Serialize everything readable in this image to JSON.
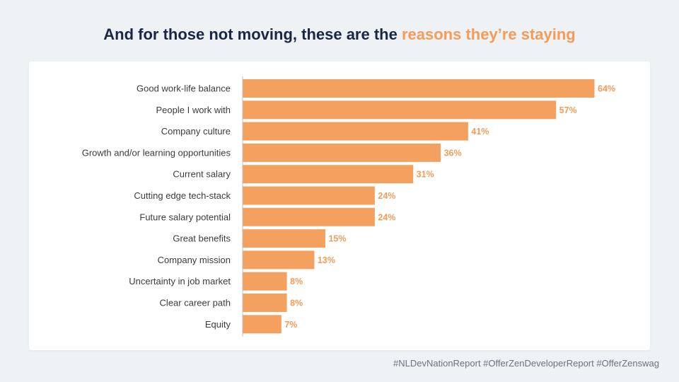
{
  "title": {
    "prefix": "And for those not moving, these are the ",
    "highlight": "reasons they’re staying"
  },
  "footer": "#NLDevNationReport #OfferZenDeveloperReport #OfferZenswag",
  "colors": {
    "bar": "#f4a160",
    "label": "#f39c5a",
    "title": "#1a2744"
  },
  "chart_data": {
    "type": "bar",
    "orientation": "horizontal",
    "title": "",
    "xlabel": "",
    "ylabel": "",
    "xlim": [
      0,
      64
    ],
    "grid": false,
    "categories": [
      "Good work-life balance",
      "People I work with",
      "Company culture",
      "Growth and/or learning opportunities",
      "Current salary",
      "Cutting edge tech-stack",
      "Future salary potential",
      "Great benefits",
      "Company mission",
      "Uncertainty in job market",
      "Clear career path",
      "Equity"
    ],
    "values": [
      64,
      57,
      41,
      36,
      31,
      24,
      24,
      15,
      13,
      8,
      8,
      7
    ],
    "value_labels": [
      "64%",
      "57%",
      "41%",
      "36%",
      "31%",
      "24%",
      "24%",
      "15%",
      "13%",
      "8%",
      "8%",
      "7%"
    ]
  }
}
